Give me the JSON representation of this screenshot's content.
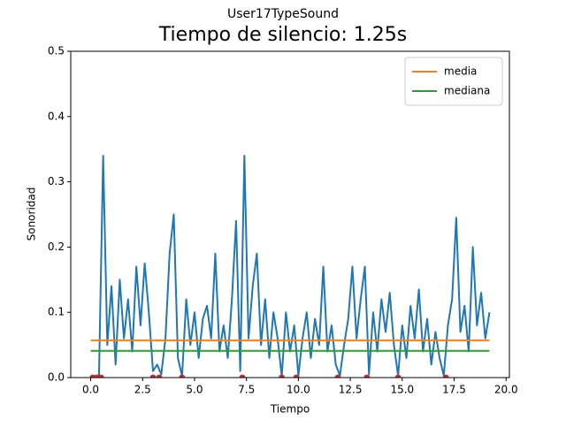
{
  "chart_data": {
    "type": "line",
    "suptitle": "User17TypeSound",
    "title": "Tiempo de silencio: 1.25s",
    "xlabel": "Tiempo",
    "ylabel": "Sonoridad",
    "xlim": [
      -0.96,
      20.16
    ],
    "ylim": [
      0,
      0.5
    ],
    "xticks": [
      {
        "value": 0,
        "label": "0.0"
      },
      {
        "value": 2.5,
        "label": "2.5"
      },
      {
        "value": 5,
        "label": "5.0"
      },
      {
        "value": 7.5,
        "label": "7.5"
      },
      {
        "value": 10,
        "label": "10.0"
      },
      {
        "value": 12.5,
        "label": "12.5"
      },
      {
        "value": 15,
        "label": "15.0"
      },
      {
        "value": 17.5,
        "label": "17.5"
      },
      {
        "value": 20,
        "label": "20.0"
      }
    ],
    "yticks": [
      {
        "value": 0,
        "label": "0.0"
      },
      {
        "value": 0.1,
        "label": "0.1"
      },
      {
        "value": 0.2,
        "label": "0.2"
      },
      {
        "value": 0.3,
        "label": "0.3"
      },
      {
        "value": 0.4,
        "label": "0.4"
      },
      {
        "value": 0.5,
        "label": "0.5"
      }
    ],
    "legend": "upper right",
    "series": [
      {
        "color": "#1f77b4",
        "x": [
          0,
          0.2,
          0.4,
          0.6,
          0.8,
          1,
          1.2,
          1.4,
          1.6,
          1.8,
          2,
          2.2,
          2.4,
          2.6,
          2.8,
          3,
          3.2,
          3.4,
          3.6,
          3.8,
          4,
          4.2,
          4.4,
          4.6,
          4.8,
          5,
          5.2,
          5.4,
          5.6,
          5.8,
          6,
          6.2,
          6.4,
          6.6,
          6.8,
          7,
          7.2,
          7.4,
          7.6,
          7.8,
          8,
          8.2,
          8.4,
          8.6,
          8.8,
          9,
          9.2,
          9.4,
          9.6,
          9.8,
          10,
          10.2,
          10.4,
          10.6,
          10.8,
          11,
          11.2,
          11.4,
          11.6,
          11.8,
          12,
          12.2,
          12.4,
          12.6,
          12.8,
          13,
          13.2,
          13.4,
          13.6,
          13.8,
          14,
          14.2,
          14.4,
          14.6,
          14.8,
          15,
          15.2,
          15.4,
          15.6,
          15.8,
          16,
          16.2,
          16.4,
          16.6,
          16.8,
          17,
          17.2,
          17.4,
          17.6,
          17.8,
          18,
          18.2,
          18.4,
          18.6,
          18.8,
          19,
          19.2
        ],
        "values": [
          0.002,
          0.001,
          0.003,
          0.34,
          0.05,
          0.14,
          0.02,
          0.15,
          0.06,
          0.12,
          0.04,
          0.17,
          0.08,
          0.175,
          0.1,
          0.01,
          0.02,
          0.005,
          0.06,
          0.19,
          0.25,
          0.03,
          0.002,
          0.12,
          0.05,
          0.1,
          0.03,
          0.09,
          0.11,
          0.06,
          0.19,
          0.04,
          0.08,
          0.03,
          0.12,
          0.24,
          0.01,
          0.34,
          0.06,
          0.14,
          0.19,
          0.05,
          0.12,
          0.03,
          0.1,
          0.06,
          0.002,
          0.1,
          0.04,
          0.08,
          0.003,
          0.06,
          0.1,
          0.03,
          0.09,
          0.05,
          0.17,
          0.04,
          0.08,
          0.02,
          0.003,
          0.05,
          0.09,
          0.17,
          0.06,
          0.12,
          0.17,
          0.005,
          0.1,
          0.04,
          0.12,
          0.07,
          0.13,
          0.05,
          0.003,
          0.08,
          0.03,
          0.11,
          0.06,
          0.135,
          0.04,
          0.09,
          0.02,
          0.07,
          0.03,
          0.003,
          0.08,
          0.12,
          0.245,
          0.07,
          0.11,
          0.04,
          0.2,
          0.08,
          0.13,
          0.06,
          0.1
        ]
      },
      {
        "color": "#d62728",
        "marker": "o",
        "x": [
          0.1,
          0.3,
          0.5,
          3.0,
          3.3,
          4.4,
          7.3,
          9.2,
          9.9,
          11.9,
          13.3,
          14.8,
          17.1
        ],
        "values": [
          0,
          0,
          0,
          0,
          0,
          0,
          0,
          0,
          0,
          0,
          0,
          0,
          0
        ]
      },
      {
        "name": "media",
        "color": "#ff7f0e",
        "x": [
          0,
          19.2
        ],
        "values": [
          0.057,
          0.057
        ]
      },
      {
        "name": "mediana",
        "color": "#2ca02c",
        "x": [
          0,
          19.2
        ],
        "values": [
          0.041,
          0.041
        ]
      }
    ]
  }
}
